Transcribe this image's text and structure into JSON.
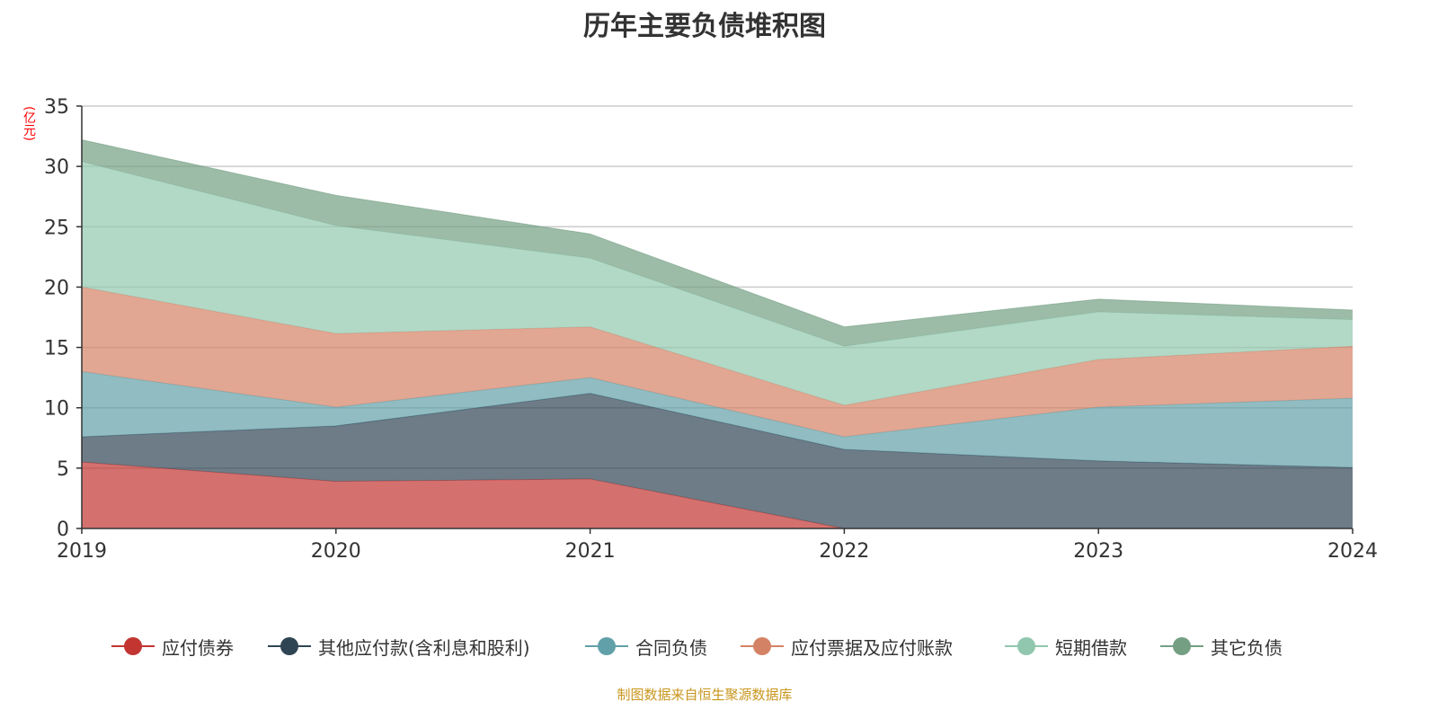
{
  "chart_data": {
    "type": "area",
    "stacked": true,
    "title": "历年主要负债堆积图",
    "ylabel": "(亿元)",
    "xlabel": "",
    "categories": [
      "2019",
      "2020",
      "2021",
      "2022",
      "2023",
      "2024"
    ],
    "ylim": [
      0,
      35
    ],
    "yticks": [
      0,
      5,
      10,
      15,
      20,
      25,
      30,
      35
    ],
    "grid": true,
    "legend_position": "bottom",
    "series": [
      {
        "name": "应付债券",
        "color": "#c23531",
        "values": [
          5.5,
          3.9,
          4.1,
          0,
          0,
          0
        ]
      },
      {
        "name": "其他应付款(含利息和股利)",
        "color": "#2f4554",
        "values": [
          2.1,
          4.6,
          7.1,
          6.55,
          5.6,
          5.05
        ]
      },
      {
        "name": "合同负债",
        "color": "#61a0a8",
        "values": [
          5.4,
          1.55,
          1.3,
          1.05,
          4.45,
          5.75
        ]
      },
      {
        "name": "应付票据及应付账款",
        "color": "#d48265",
        "values": [
          7.0,
          6.1,
          4.2,
          2.6,
          3.95,
          4.3
        ]
      },
      {
        "name": "短期借款",
        "color": "#91c7ae",
        "values": [
          10.4,
          8.95,
          5.7,
          4.9,
          3.95,
          2.2
        ]
      },
      {
        "name": "其它负债",
        "color": "#749f83",
        "values": [
          1.8,
          2.5,
          2.0,
          1.6,
          1.05,
          0.8
        ]
      }
    ]
  },
  "source": "制图数据来自恒生聚源数据库"
}
